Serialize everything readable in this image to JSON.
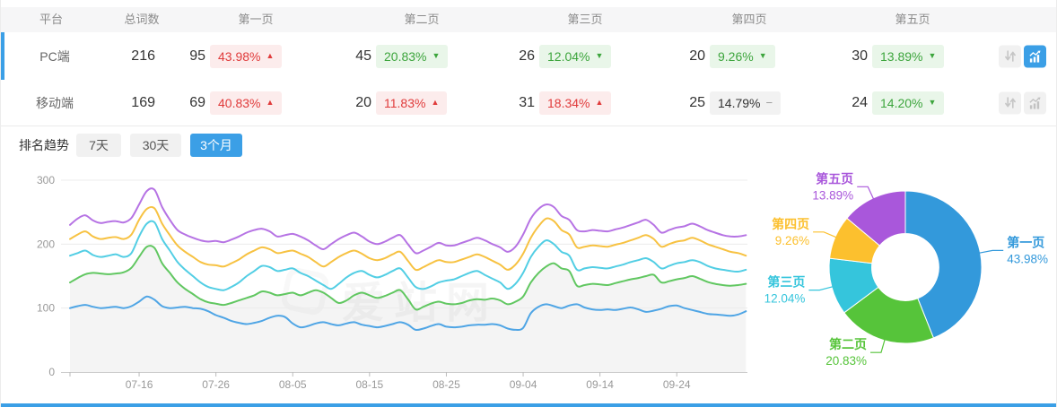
{
  "page": {
    "accent": "#3B9FE6",
    "watermark": "爱站网"
  },
  "table": {
    "headers": {
      "platform": "平台",
      "total": "总词数",
      "pages": [
        "第一页",
        "第二页",
        "第三页",
        "第四页",
        "第五页"
      ]
    },
    "rows": [
      {
        "platform": "PC端",
        "total": "216",
        "active": true,
        "pages": [
          {
            "count": "95",
            "pct": "43.98%",
            "dir": "up"
          },
          {
            "count": "45",
            "pct": "20.83%",
            "dir": "down"
          },
          {
            "count": "26",
            "pct": "12.04%",
            "dir": "down"
          },
          {
            "count": "20",
            "pct": "9.26%",
            "dir": "down"
          },
          {
            "count": "30",
            "pct": "13.89%",
            "dir": "down"
          }
        ]
      },
      {
        "platform": "移动端",
        "total": "169",
        "active": false,
        "pages": [
          {
            "count": "69",
            "pct": "40.83%",
            "dir": "up"
          },
          {
            "count": "20",
            "pct": "11.83%",
            "dir": "up"
          },
          {
            "count": "31",
            "pct": "18.34%",
            "dir": "up"
          },
          {
            "count": "25",
            "pct": "14.79%",
            "dir": "flat"
          },
          {
            "count": "24",
            "pct": "14.20%",
            "dir": "down"
          }
        ]
      }
    ],
    "badge_colors": {
      "up_text": "#E03B3B",
      "up_bg": "#FCECEC",
      "down_text": "#3DA53D",
      "down_bg": "#E9F6E9",
      "flat_text": "#333333",
      "flat_bg": "#F2F2F2"
    }
  },
  "trend": {
    "title": "排名趋势",
    "tabs": [
      {
        "label": "7天",
        "active": false
      },
      {
        "label": "30天",
        "active": false
      },
      {
        "label": "3个月",
        "active": true
      }
    ]
  },
  "chart_data": [
    {
      "type": "line",
      "title": "排名趋势 (3个月)",
      "ylim": [
        0,
        300
      ],
      "yticks": [
        0,
        100,
        200,
        300
      ],
      "grid": true,
      "legend_position": "none",
      "watermark": "爱站网",
      "x_labels": [
        "07-16",
        "07-26",
        "08-05",
        "08-15",
        "08-25",
        "09-04",
        "09-14",
        "09-24"
      ],
      "x_label_day_index": [
        9,
        19,
        29,
        39,
        49,
        59,
        69,
        79
      ],
      "series": [
        {
          "name": "第一页",
          "color": "#4FA5E5",
          "area": false,
          "values": [
            100,
            103,
            105,
            102,
            100,
            101,
            102,
            100,
            103,
            110,
            118,
            113,
            103,
            100,
            101,
            102,
            100,
            99,
            95,
            89,
            85,
            80,
            77,
            75,
            77,
            80,
            85,
            88,
            86,
            76,
            70,
            72,
            76,
            78,
            75,
            73,
            76,
            78,
            74,
            72,
            70,
            72,
            75,
            78,
            74,
            66,
            68,
            72,
            75,
            71,
            70,
            71,
            73,
            74,
            74,
            75,
            73,
            68,
            66,
            69,
            92,
            102,
            106,
            103,
            100,
            104,
            106,
            101,
            98,
            97,
            98,
            97,
            99,
            101,
            98,
            94,
            96,
            99,
            103,
            104,
            100,
            97,
            94,
            91,
            90,
            89,
            88,
            90,
            95
          ]
        },
        {
          "name": "第二页",
          "color": "#61C761",
          "area": true,
          "values": [
            140,
            147,
            153,
            155,
            154,
            153,
            154,
            156,
            163,
            180,
            196,
            194,
            170,
            155,
            140,
            130,
            122,
            114,
            109,
            107,
            105,
            108,
            112,
            116,
            120,
            126,
            124,
            120,
            122,
            124,
            120,
            124,
            128,
            124,
            116,
            108,
            112,
            120,
            124,
            120,
            116,
            119,
            124,
            128,
            114,
            98,
            102,
            107,
            110,
            107,
            106,
            108,
            112,
            114,
            113,
            115,
            112,
            106,
            110,
            118,
            140,
            155,
            165,
            170,
            162,
            158,
            135,
            136,
            138,
            137,
            136,
            139,
            142,
            145,
            147,
            150,
            152,
            140,
            142,
            145,
            147,
            150,
            146,
            141,
            138,
            136,
            135,
            136,
            138
          ]
        },
        {
          "name": "第三页",
          "color": "#52CEE4",
          "area": false,
          "values": [
            182,
            186,
            190,
            183,
            180,
            182,
            184,
            180,
            186,
            212,
            232,
            234,
            208,
            190,
            172,
            160,
            150,
            140,
            133,
            130,
            128,
            133,
            140,
            150,
            158,
            166,
            164,
            158,
            160,
            162,
            155,
            150,
            143,
            136,
            130,
            138,
            148,
            155,
            158,
            152,
            148,
            152,
            158,
            162,
            148,
            133,
            130,
            134,
            140,
            143,
            145,
            150,
            155,
            158,
            152,
            146,
            140,
            130,
            138,
            155,
            180,
            196,
            206,
            200,
            188,
            182,
            160,
            162,
            164,
            163,
            162,
            165,
            168,
            172,
            175,
            178,
            172,
            162,
            166,
            170,
            172,
            175,
            172,
            166,
            162,
            160,
            158,
            157,
            160
          ]
        },
        {
          "name": "第四页",
          "color": "#F7C242",
          "area": false,
          "values": [
            208,
            215,
            220,
            212,
            208,
            210,
            211,
            208,
            215,
            238,
            255,
            256,
            232,
            214,
            198,
            188,
            180,
            172,
            168,
            167,
            165,
            170,
            176,
            184,
            190,
            195,
            192,
            186,
            188,
            190,
            185,
            180,
            172,
            165,
            172,
            180,
            186,
            190,
            185,
            178,
            175,
            178,
            184,
            188,
            174,
            160,
            164,
            170,
            175,
            172,
            172,
            176,
            180,
            184,
            180,
            174,
            168,
            160,
            168,
            185,
            210,
            228,
            240,
            236,
            222,
            215,
            195,
            196,
            198,
            197,
            196,
            199,
            202,
            206,
            210,
            214,
            208,
            196,
            200,
            204,
            206,
            210,
            206,
            200,
            196,
            192,
            188,
            186,
            182
          ]
        },
        {
          "name": "第五页",
          "color": "#B673E4",
          "area": false,
          "values": [
            230,
            240,
            245,
            237,
            233,
            235,
            236,
            234,
            241,
            262,
            283,
            285,
            258,
            238,
            222,
            215,
            210,
            206,
            204,
            205,
            203,
            207,
            212,
            218,
            222,
            224,
            220,
            212,
            214,
            216,
            212,
            206,
            198,
            192,
            200,
            208,
            214,
            218,
            212,
            204,
            200,
            204,
            210,
            214,
            200,
            186,
            190,
            196,
            202,
            198,
            198,
            202,
            206,
            210,
            206,
            200,
            195,
            188,
            196,
            215,
            240,
            255,
            262,
            258,
            244,
            238,
            222,
            220,
            222,
            221,
            220,
            223,
            226,
            230,
            234,
            238,
            230,
            218,
            222,
            226,
            228,
            232,
            228,
            222,
            218,
            214,
            212,
            212,
            214
          ]
        }
      ]
    },
    {
      "type": "pie",
      "donut": true,
      "start_angle_deg": 0,
      "clockwise": true,
      "labels": [
        "第一页",
        "第二页",
        "第三页",
        "第四页",
        "第五页"
      ],
      "values": [
        43.98,
        20.83,
        12.04,
        9.26,
        13.89
      ],
      "colors": [
        "#3399DB",
        "#56C43A",
        "#35C5DC",
        "#FCC02E",
        "#A957DB"
      ]
    }
  ]
}
